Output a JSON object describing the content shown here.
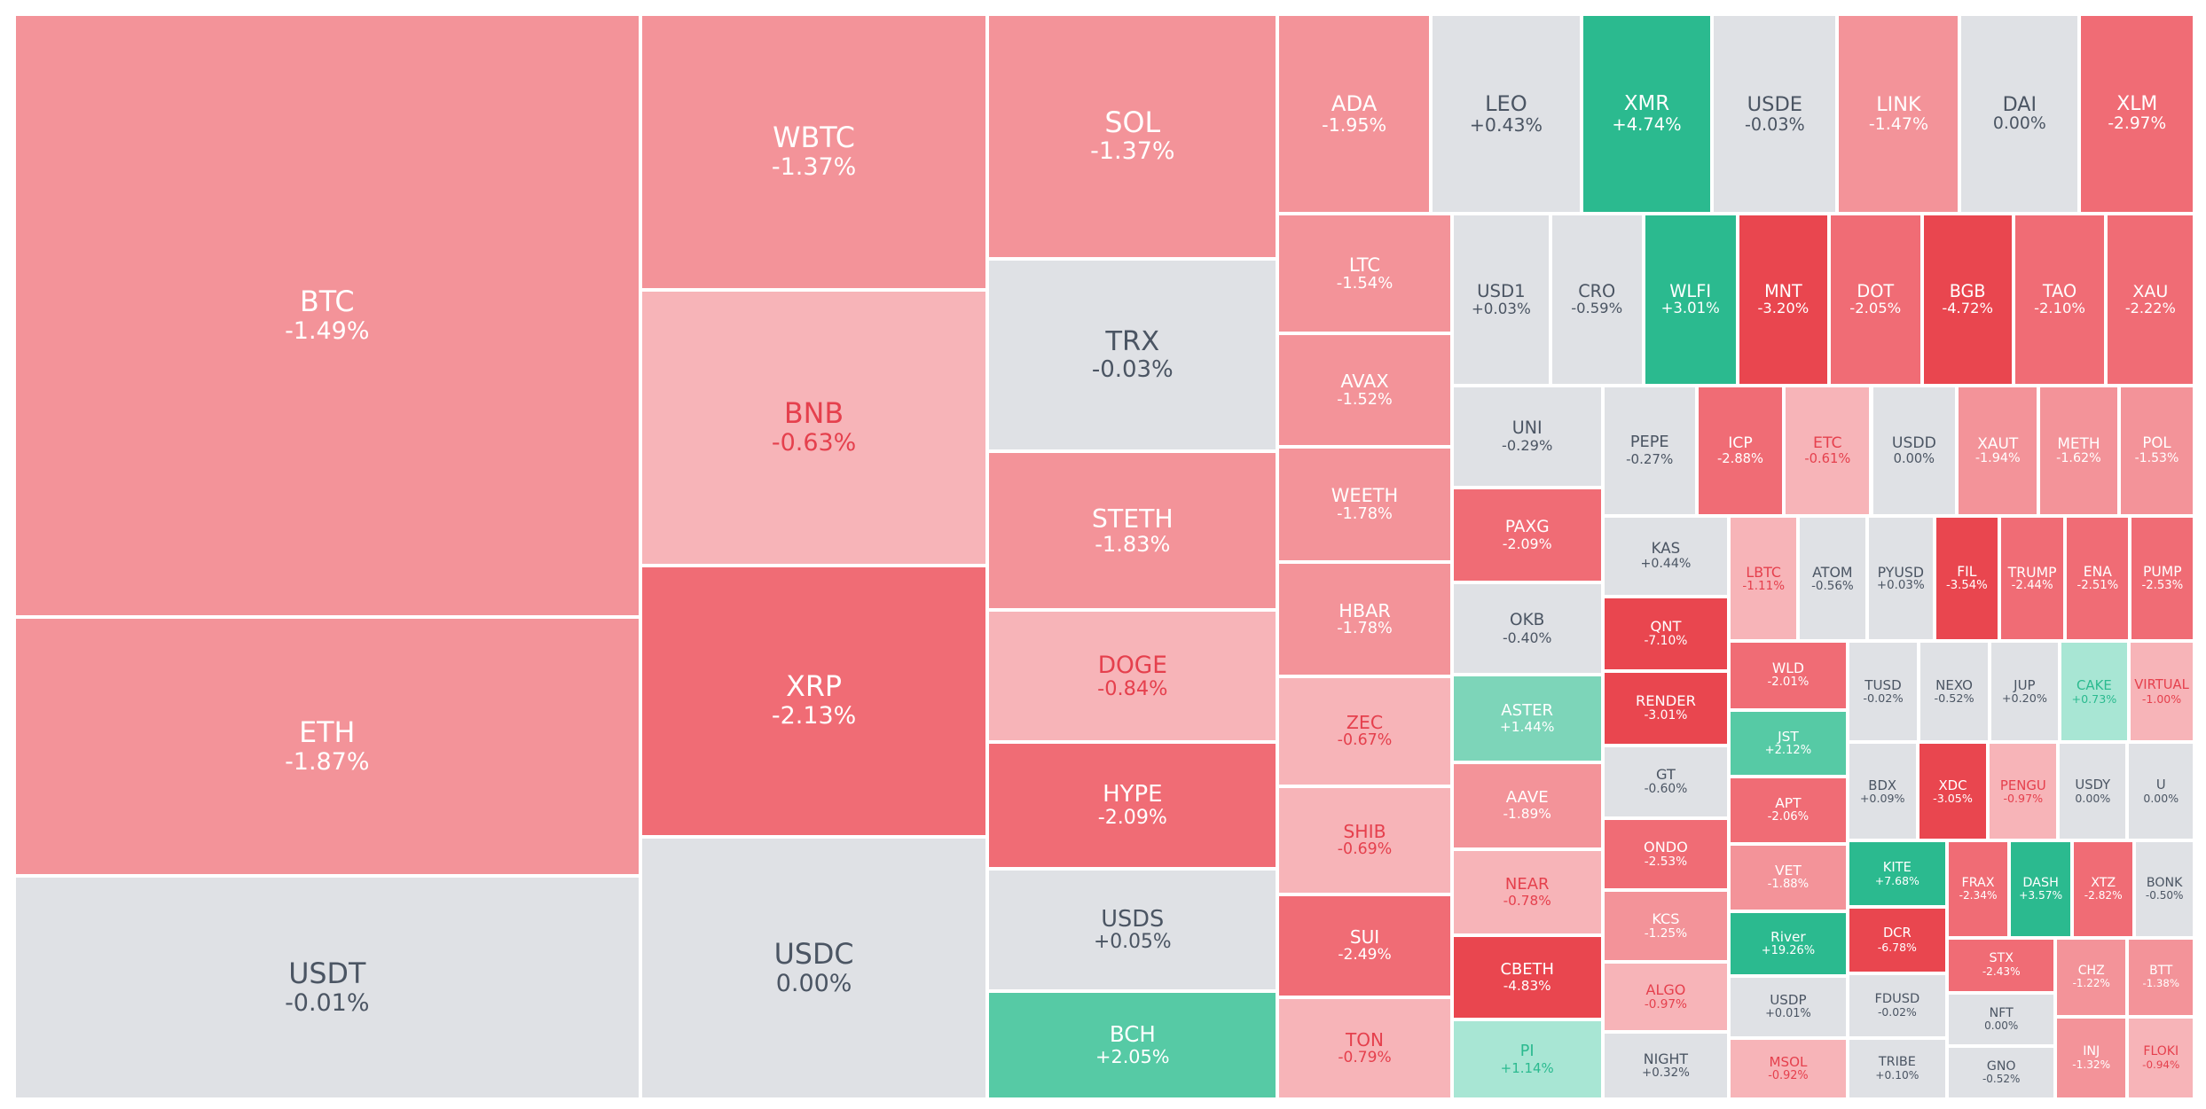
{
  "tiles": [
    {
      "name": "BTC",
      "change": "-1.49%",
      "color": "#f39399",
      "text_color": "#ffffff"
    },
    {
      "name": "ETH",
      "change": "-1.87%",
      "color": "#f39399",
      "text_color": "#ffffff"
    },
    {
      "name": "USDT",
      "change": "-0.01%",
      "color": "#dfe1e5",
      "text_color": "#4b5563"
    },
    {
      "name": "WBTC",
      "change": "-1.37%",
      "color": "#f39399",
      "text_color": "#ffffff"
    },
    {
      "name": "BNB",
      "change": "-0.63%",
      "color": "#f7b4b8",
      "text_color": "#e5404d"
    },
    {
      "name": "XRP",
      "change": "-2.13%",
      "color": "#f06c75",
      "text_color": "#ffffff"
    },
    {
      "name": "USDC",
      "change": "0.00%",
      "color": "#dfe1e5",
      "text_color": "#4b5563"
    },
    {
      "name": "SOL",
      "change": "-1.37%",
      "color": "#f39399",
      "text_color": "#ffffff"
    },
    {
      "name": "TRX",
      "change": "-0.03%",
      "color": "#dfe1e5",
      "text_color": "#4b5563"
    },
    {
      "name": "STETH",
      "change": "-1.83%",
      "color": "#f39399",
      "text_color": "#ffffff"
    },
    {
      "name": "DOGE",
      "change": "-0.84%",
      "color": "#f7b4b8",
      "text_color": "#e5404d"
    },
    {
      "name": "HYPE",
      "change": "-2.09%",
      "color": "#f06c75",
      "text_color": "#ffffff"
    },
    {
      "name": "USDS",
      "change": "+0.05%",
      "color": "#dfe1e5",
      "text_color": "#4b5563"
    },
    {
      "name": "BCH",
      "change": "+2.05%",
      "color": "#56caa5",
      "text_color": "#ffffff"
    },
    {
      "name": "ADA",
      "change": "-1.95%",
      "color": "#f39399",
      "text_color": "#ffffff"
    },
    {
      "name": "LEO",
      "change": "+0.43%",
      "color": "#dfe1e5",
      "text_color": "#4b5563"
    },
    {
      "name": "XMR",
      "change": "+4.74%",
      "color": "#2bba8f",
      "text_color": "#ffffff"
    },
    {
      "name": "USDE",
      "change": "-0.03%",
      "color": "#dfe1e5",
      "text_color": "#4b5563"
    },
    {
      "name": "LINK",
      "change": "-1.47%",
      "color": "#f39399",
      "text_color": "#ffffff"
    },
    {
      "name": "DAI",
      "change": "0.00%",
      "color": "#dfe1e5",
      "text_color": "#4b5563"
    },
    {
      "name": "XLM",
      "change": "-2.97%",
      "color": "#f06c75",
      "text_color": "#ffffff"
    },
    {
      "name": "LTC",
      "change": "-1.54%",
      "color": "#f39399",
      "text_color": "#ffffff"
    },
    {
      "name": "AVAX",
      "change": "-1.52%",
      "color": "#f39399",
      "text_color": "#ffffff"
    },
    {
      "name": "WEETH",
      "change": "-1.78%",
      "color": "#f39399",
      "text_color": "#ffffff"
    },
    {
      "name": "HBAR",
      "change": "-1.78%",
      "color": "#f39399",
      "text_color": "#ffffff"
    },
    {
      "name": "ZEC",
      "change": "-0.67%",
      "color": "#f7b4b8",
      "text_color": "#e5404d"
    },
    {
      "name": "SHIB",
      "change": "-0.69%",
      "color": "#f7b4b8",
      "text_color": "#e5404d"
    },
    {
      "name": "SUI",
      "change": "-2.49%",
      "color": "#f06c75",
      "text_color": "#ffffff"
    },
    {
      "name": "TON",
      "change": "-0.79%",
      "color": "#f7b4b8",
      "text_color": "#e5404d"
    },
    {
      "name": "USD1",
      "change": "+0.03%",
      "color": "#dfe1e5",
      "text_color": "#4b5563"
    },
    {
      "name": "CRO",
      "change": "-0.59%",
      "color": "#dfe1e5",
      "text_color": "#4b5563"
    },
    {
      "name": "WLFI",
      "change": "+3.01%",
      "color": "#2bba8f",
      "text_color": "#ffffff"
    },
    {
      "name": "MNT",
      "change": "-3.20%",
      "color": "#e9464f",
      "text_color": "#ffffff"
    },
    {
      "name": "DOT",
      "change": "-2.05%",
      "color": "#f06c75",
      "text_color": "#ffffff"
    },
    {
      "name": "BGB",
      "change": "-4.72%",
      "color": "#e9464f",
      "text_color": "#ffffff"
    },
    {
      "name": "TAO",
      "change": "-2.10%",
      "color": "#f06c75",
      "text_color": "#ffffff"
    },
    {
      "name": "XAU",
      "change": "-2.22%",
      "color": "#f06c75",
      "text_color": "#ffffff"
    },
    {
      "name": "UNI",
      "change": "-0.29%",
      "color": "#dfe1e5",
      "text_color": "#4b5563"
    },
    {
      "name": "PAXG",
      "change": "-2.09%",
      "color": "#f06c75",
      "text_color": "#ffffff"
    },
    {
      "name": "OKB",
      "change": "-0.40%",
      "color": "#dfe1e5",
      "text_color": "#4b5563"
    },
    {
      "name": "ASTER",
      "change": "+1.44%",
      "color": "#7dd5b9",
      "text_color": "#ffffff"
    },
    {
      "name": "AAVE",
      "change": "-1.89%",
      "color": "#f39399",
      "text_color": "#ffffff"
    },
    {
      "name": "NEAR",
      "change": "-0.78%",
      "color": "#f7b4b8",
      "text_color": "#e5404d"
    },
    {
      "name": "CBETH",
      "change": "-4.83%",
      "color": "#e9464f",
      "text_color": "#ffffff"
    },
    {
      "name": "PI",
      "change": "+1.14%",
      "color": "#a8e6d4",
      "text_color": "#2bba8f"
    },
    {
      "name": "PEPE",
      "change": "-0.27%",
      "color": "#dfe1e5",
      "text_color": "#4b5563"
    },
    {
      "name": "ICP",
      "change": "-2.88%",
      "color": "#f06c75",
      "text_color": "#ffffff"
    },
    {
      "name": "ETC",
      "change": "-0.61%",
      "color": "#f7b4b8",
      "text_color": "#e5404d"
    },
    {
      "name": "USDD",
      "change": "0.00%",
      "color": "#dfe1e5",
      "text_color": "#4b5563"
    },
    {
      "name": "XAUT",
      "change": "-1.94%",
      "color": "#f39399",
      "text_color": "#ffffff"
    },
    {
      "name": "METH",
      "change": "-1.62%",
      "color": "#f39399",
      "text_color": "#ffffff"
    },
    {
      "name": "POL",
      "change": "-1.53%",
      "color": "#f39399",
      "text_color": "#ffffff"
    },
    {
      "name": "KAS",
      "change": "+0.44%",
      "color": "#dfe1e5",
      "text_color": "#4b5563"
    },
    {
      "name": "QNT",
      "change": "-7.10%",
      "color": "#e9464f",
      "text_color": "#ffffff"
    },
    {
      "name": "RENDER",
      "change": "-3.01%",
      "color": "#e9464f",
      "text_color": "#ffffff"
    },
    {
      "name": "GT",
      "change": "-0.60%",
      "color": "#dfe1e5",
      "text_color": "#4b5563"
    },
    {
      "name": "ONDO",
      "change": "-2.53%",
      "color": "#f06c75",
      "text_color": "#ffffff"
    },
    {
      "name": "KCS",
      "change": "-1.25%",
      "color": "#f39399",
      "text_color": "#ffffff"
    },
    {
      "name": "ALGO",
      "change": "-0.97%",
      "color": "#f7b4b8",
      "text_color": "#e5404d"
    },
    {
      "name": "NIGHT",
      "change": "+0.32%",
      "color": "#dfe1e5",
      "text_color": "#4b5563"
    },
    {
      "name": "LBTC",
      "change": "-1.11%",
      "color": "#f7b4b8",
      "text_color": "#e5404d"
    },
    {
      "name": "ATOM",
      "change": "-0.56%",
      "color": "#dfe1e5",
      "text_color": "#4b5563"
    },
    {
      "name": "PYUSD",
      "change": "+0.03%",
      "color": "#dfe1e5",
      "text_color": "#4b5563"
    },
    {
      "name": "FIL",
      "change": "-3.54%",
      "color": "#e9464f",
      "text_color": "#ffffff"
    },
    {
      "name": "TRUMP",
      "change": "-2.44%",
      "color": "#f06c75",
      "text_color": "#ffffff"
    },
    {
      "name": "ENA",
      "change": "-2.51%",
      "color": "#f06c75",
      "text_color": "#ffffff"
    },
    {
      "name": "PUMP",
      "change": "-2.53%",
      "color": "#f06c75",
      "text_color": "#ffffff"
    },
    {
      "name": "WLD",
      "change": "-2.01%",
      "color": "#f06c75",
      "text_color": "#ffffff"
    },
    {
      "name": "JST",
      "change": "+2.12%",
      "color": "#56caa5",
      "text_color": "#ffffff"
    },
    {
      "name": "APT",
      "change": "-2.06%",
      "color": "#f06c75",
      "text_color": "#ffffff"
    },
    {
      "name": "VET",
      "change": "-1.88%",
      "color": "#f39399",
      "text_color": "#ffffff"
    },
    {
      "name": "River",
      "change": "+19.26%",
      "color": "#2bba8f",
      "text_color": "#ffffff"
    },
    {
      "name": "USDP",
      "change": "+0.01%",
      "color": "#dfe1e5",
      "text_color": "#4b5563"
    },
    {
      "name": "MSOL",
      "change": "-0.92%",
      "color": "#f7b4b8",
      "text_color": "#e5404d"
    },
    {
      "name": "TUSD",
      "change": "-0.02%",
      "color": "#dfe1e5",
      "text_color": "#4b5563"
    },
    {
      "name": "NEXO",
      "change": "-0.52%",
      "color": "#dfe1e5",
      "text_color": "#4b5563"
    },
    {
      "name": "JUP",
      "change": "+0.20%",
      "color": "#dfe1e5",
      "text_color": "#4b5563"
    },
    {
      "name": "CAKE",
      "change": "+0.73%",
      "color": "#a8e6d4",
      "text_color": "#2bba8f"
    },
    {
      "name": "VIRTUAL",
      "change": "-1.00%",
      "color": "#f7b4b8",
      "text_color": "#e5404d"
    },
    {
      "name": "BDX",
      "change": "+0.09%",
      "color": "#dfe1e5",
      "text_color": "#4b5563"
    },
    {
      "name": "XDC",
      "change": "-3.05%",
      "color": "#e9464f",
      "text_color": "#ffffff"
    },
    {
      "name": "PENGU",
      "change": "-0.97%",
      "color": "#f7b4b8",
      "text_color": "#e5404d"
    },
    {
      "name": "USDY",
      "change": "0.00%",
      "color": "#dfe1e5",
      "text_color": "#4b5563"
    },
    {
      "name": "U",
      "change": "0.00%",
      "color": "#dfe1e5",
      "text_color": "#4b5563"
    },
    {
      "name": "KITE",
      "change": "+7.68%",
      "color": "#2bba8f",
      "text_color": "#ffffff"
    },
    {
      "name": "DCR",
      "change": "-6.78%",
      "color": "#e9464f",
      "text_color": "#ffffff"
    },
    {
      "name": "FDUSD",
      "change": "-0.02%",
      "color": "#dfe1e5",
      "text_color": "#4b5563"
    },
    {
      "name": "TRIBE",
      "change": "+0.10%",
      "color": "#dfe1e5",
      "text_color": "#4b5563"
    },
    {
      "name": "FRAX",
      "change": "-2.34%",
      "color": "#f06c75",
      "text_color": "#ffffff"
    },
    {
      "name": "DASH",
      "change": "+3.57%",
      "color": "#2bba8f",
      "text_color": "#ffffff"
    },
    {
      "name": "XTZ",
      "change": "-2.82%",
      "color": "#f06c75",
      "text_color": "#ffffff"
    },
    {
      "name": "BONK",
      "change": "-0.50%",
      "color": "#dfe1e5",
      "text_color": "#4b5563"
    },
    {
      "name": "STX",
      "change": "-2.43%",
      "color": "#f06c75",
      "text_color": "#ffffff"
    },
    {
      "name": "NFT",
      "change": "0.00%",
      "color": "#dfe1e5",
      "text_color": "#4b5563"
    },
    {
      "name": "GNO",
      "change": "-0.52%",
      "color": "#dfe1e5",
      "text_color": "#4b5563"
    },
    {
      "name": "CHZ",
      "change": "-1.22%",
      "color": "#f39399",
      "text_color": "#ffffff"
    },
    {
      "name": "BTT",
      "change": "-1.38%",
      "color": "#f39399",
      "text_color": "#ffffff"
    },
    {
      "name": "INJ",
      "change": "-1.32%",
      "color": "#f39399",
      "text_color": "#ffffff"
    },
    {
      "name": "FLOKI",
      "change": "-0.94%",
      "color": "#f7b4b8",
      "text_color": "#e5404d"
    }
  ]
}
